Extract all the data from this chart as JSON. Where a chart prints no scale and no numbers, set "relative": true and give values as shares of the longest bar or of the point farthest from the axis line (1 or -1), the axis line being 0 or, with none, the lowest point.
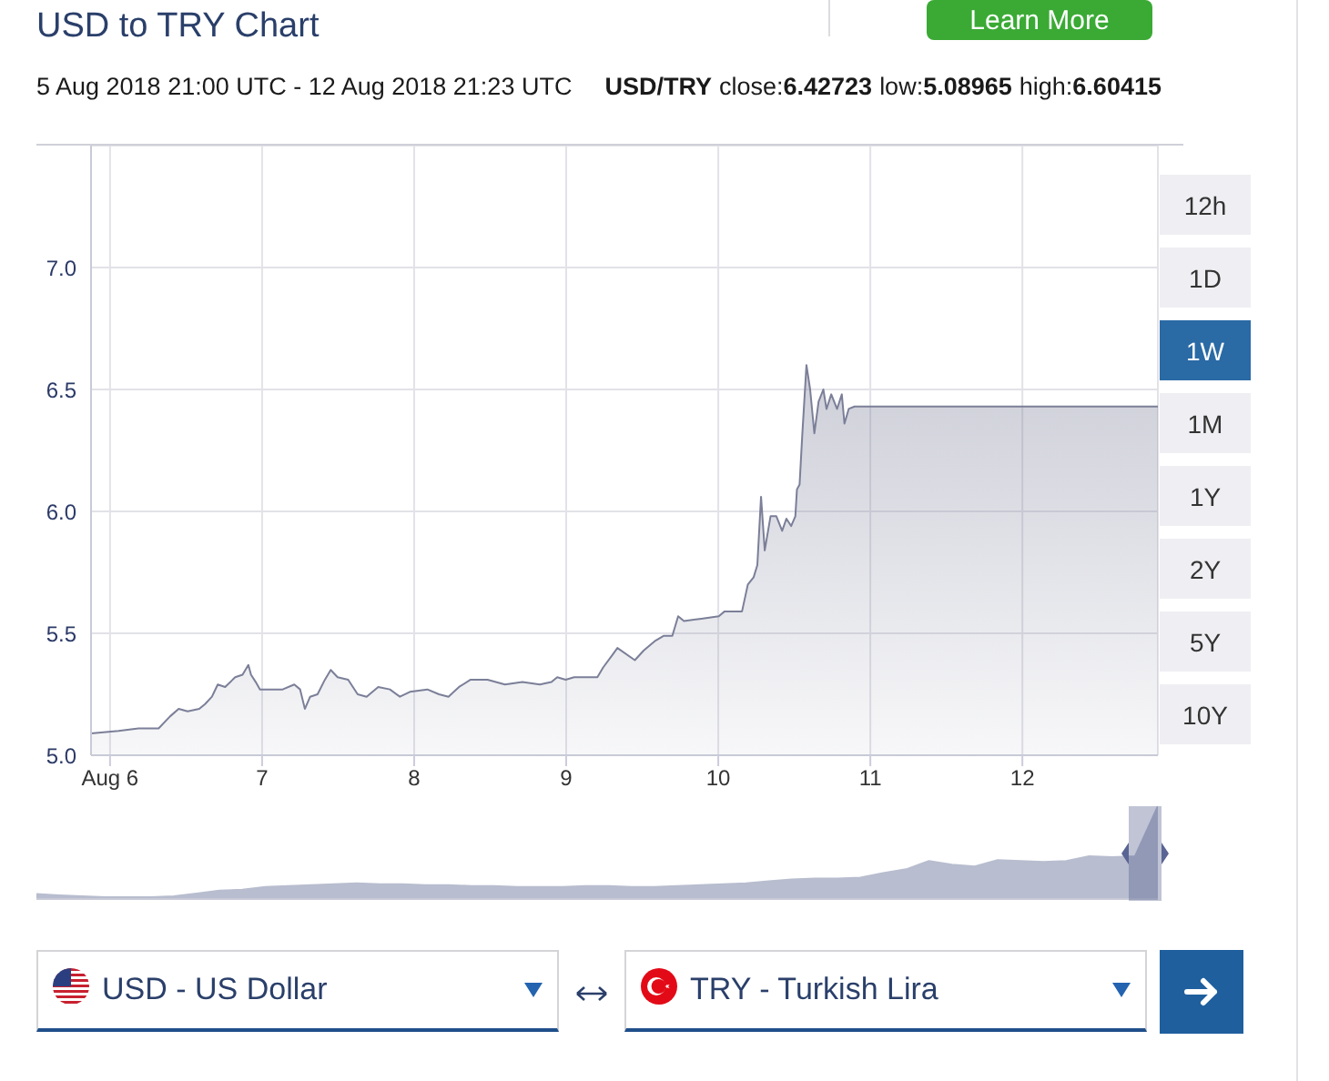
{
  "chart_data": [
    {
      "type": "area",
      "title": "USD to TRY Chart",
      "subtitle": "5 Aug 2018 21:00 UTC - 12 Aug 2018 21:23 UTC",
      "annotations": [
        "USD/TRY",
        "close:6.42723",
        "low:5.08965",
        "high:6.60415",
        "Learn More",
        "12h",
        "1D",
        "1W",
        "1M",
        "1Y",
        "2Y",
        "5Y",
        "10Y",
        "USD - US Dollar",
        "TRY - Turkish Lira"
      ],
      "x": [
        "2018-08-05T21:00",
        "2018-08-06T01:20",
        "2018-08-06T04:30",
        "2018-08-06T07:40",
        "2018-08-06T09:30",
        "2018-08-06T10:50",
        "2018-08-06T12:15",
        "2018-08-06T14:05",
        "2018-08-06T15:00",
        "2018-08-06T16:05",
        "2018-08-06T17:00",
        "2018-08-06T18:10",
        "2018-08-06T19:45",
        "2018-08-06T20:55",
        "2018-08-06T21:50",
        "2018-08-06T22:15",
        "2018-08-06T23:00",
        "2018-08-06T23:40",
        "2018-08-07T01:00",
        "2018-08-07T03:15",
        "2018-08-07T05:05",
        "2018-08-07T06:00",
        "2018-08-07T06:45",
        "2018-08-07T07:35",
        "2018-08-07T08:45",
        "2018-08-07T09:55",
        "2018-08-07T10:50",
        "2018-08-07T11:55",
        "2018-08-07T13:35",
        "2018-08-07T15:05",
        "2018-08-07T16:30",
        "2018-08-07T18:20",
        "2018-08-07T20:10",
        "2018-08-07T21:45",
        "2018-08-07T23:20",
        "2018-08-08T02:05",
        "2018-08-08T03:55",
        "2018-08-08T05:25",
        "2018-08-08T07:05",
        "2018-08-08T08:55",
        "2018-08-08T11:35",
        "2018-08-08T14:20",
        "2018-08-08T17:05",
        "2018-08-08T19:50",
        "2018-08-08T21:40",
        "2018-08-08T22:35",
        "2018-08-08T23:55",
        "2018-08-09T01:15",
        "2018-08-09T04:55",
        "2018-08-09T05:50",
        "2018-08-09T07:15",
        "2018-08-09T08:05",
        "2018-08-09T10:50",
        "2018-08-09T12:15",
        "2018-08-09T14:05",
        "2018-08-09T15:25",
        "2018-08-09T16:45",
        "2018-08-09T17:40",
        "2018-08-09T18:35",
        "2018-08-09T21:20",
        "2018-08-10T00:05",
        "2018-08-10T01:00",
        "2018-08-10T03:45",
        "2018-08-10T04:40",
        "2018-08-10T05:35",
        "2018-08-10T06:10",
        "2018-08-10T06:45",
        "2018-08-10T07:20",
        "2018-08-10T08:15",
        "2018-08-10T09:10",
        "2018-08-10T10:05",
        "2018-08-10T10:45",
        "2018-08-10T11:30",
        "2018-08-10T12:10",
        "2018-08-10T12:25",
        "2018-08-10T12:50",
        "2018-08-10T13:15",
        "2018-08-10T13:55",
        "2018-08-10T14:30",
        "2018-08-10T15:10",
        "2018-08-10T15:50",
        "2018-08-10T16:35",
        "2018-08-10T17:05",
        "2018-08-10T17:50",
        "2018-08-10T18:45",
        "2018-08-10T19:30",
        "2018-08-10T19:55",
        "2018-08-10T20:35",
        "2018-08-10T21:30",
        "2018-08-12T21:23"
      ],
      "values": [
        5.09,
        5.1,
        5.11,
        5.11,
        5.16,
        5.19,
        5.18,
        5.19,
        5.21,
        5.24,
        5.29,
        5.28,
        5.32,
        5.33,
        5.37,
        5.33,
        5.3,
        5.27,
        5.27,
        5.27,
        5.29,
        5.27,
        5.19,
        5.24,
        5.25,
        5.31,
        5.35,
        5.32,
        5.31,
        5.25,
        5.24,
        5.28,
        5.27,
        5.24,
        5.26,
        5.27,
        5.25,
        5.24,
        5.28,
        5.31,
        5.31,
        5.29,
        5.3,
        5.29,
        5.3,
        5.32,
        5.31,
        5.32,
        5.32,
        5.36,
        5.41,
        5.44,
        5.39,
        5.43,
        5.47,
        5.49,
        5.49,
        5.57,
        5.55,
        5.56,
        5.57,
        5.59,
        5.59,
        5.7,
        5.73,
        5.78,
        6.06,
        5.84,
        5.98,
        5.98,
        5.92,
        5.97,
        5.94,
        5.98,
        6.09,
        6.11,
        6.31,
        6.6,
        6.5,
        6.32,
        6.45,
        6.5,
        6.42,
        6.48,
        6.42,
        6.48,
        6.36,
        6.42,
        6.43,
        6.43
      ],
      "color": "#7b7f98",
      "xlim": [
        "2018-08-05T21:00",
        "2018-08-12T21:23"
      ],
      "xticks": [
        {
          "value": "2018-08-06",
          "label": "Aug 6"
        },
        {
          "value": "2018-08-07",
          "label": "7"
        },
        {
          "value": "2018-08-08",
          "label": "8"
        },
        {
          "value": "2018-08-09",
          "label": "9"
        },
        {
          "value": "2018-08-10",
          "label": "10"
        },
        {
          "value": "2018-08-11",
          "label": "11"
        },
        {
          "value": "2018-08-12",
          "label": "12"
        }
      ],
      "ylim": [
        5,
        7.5
      ],
      "yticks": [
        {
          "value": 5,
          "label": "5.0"
        },
        5.5,
        {
          "value": 6,
          "label": "6.0"
        },
        6.5,
        {
          "value": 7,
          "label": "7.0"
        }
      ],
      "grid": true
    },
    {
      "type": "area",
      "relative": true,
      "tick_labels": false,
      "categories": [
        null,
        null,
        null,
        null,
        null,
        null,
        null,
        null,
        null,
        null,
        null,
        null,
        null,
        null,
        null,
        null,
        null,
        null,
        null,
        null,
        null,
        null,
        null,
        null,
        null,
        null,
        null,
        null,
        null,
        null,
        null,
        null,
        null,
        null,
        null,
        null,
        null,
        null,
        null,
        null,
        null,
        null,
        null,
        null,
        null,
        null,
        null,
        null,
        null,
        null
      ],
      "values": [
        0.055,
        0.04,
        0.03,
        0.02,
        0.02,
        0.02,
        0.03,
        0.06,
        0.09,
        0.1,
        0.13,
        0.14,
        0.15,
        0.16,
        0.17,
        0.16,
        0.16,
        0.15,
        0.15,
        0.14,
        0.14,
        0.13,
        0.13,
        0.13,
        0.14,
        0.14,
        0.13,
        0.13,
        0.14,
        0.15,
        0.16,
        0.17,
        0.19,
        0.21,
        0.22,
        0.22,
        0.23,
        0.28,
        0.32,
        0.41,
        0.37,
        0.35,
        0.42,
        0.41,
        0.4,
        0.41,
        0.46,
        0.45,
        0.46,
        1.0
      ],
      "color": "#b8bdcf"
    }
  ]
}
